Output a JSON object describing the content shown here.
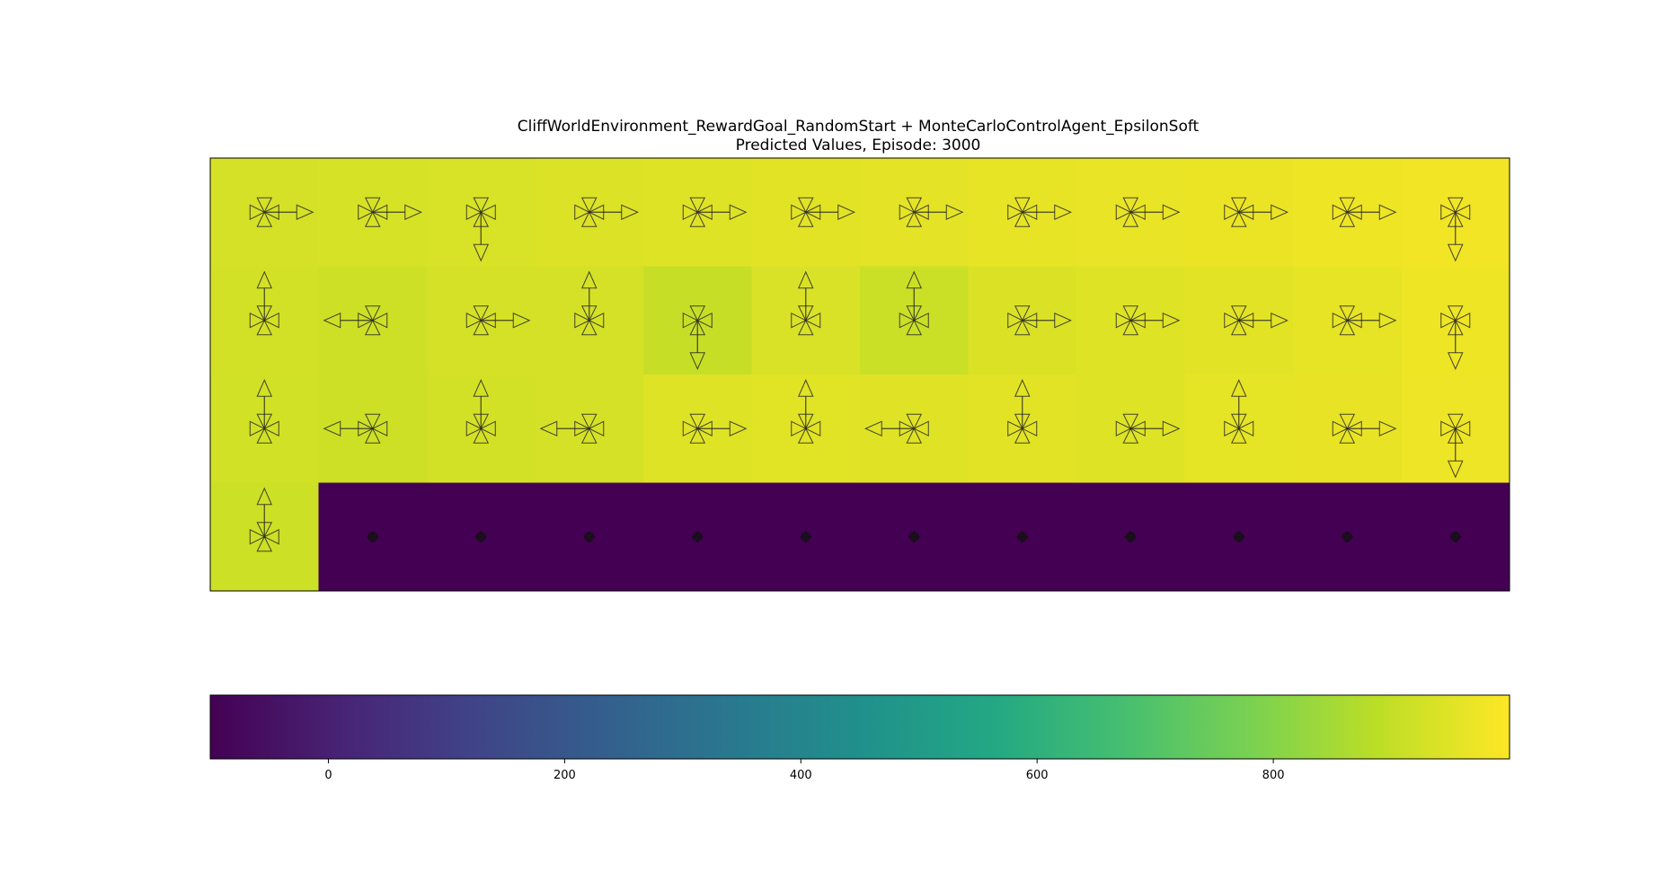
{
  "chart_data": {
    "type": "heatmap",
    "title": "CliffWorldEnvironment_RewardGoal_RandomStart + MonteCarloControlAgent_EpsilonSoft",
    "subtitle": "Predicted Values, Episode: 3000",
    "rows": 4,
    "cols": 12,
    "values": [
      [
        930,
        933,
        937,
        943,
        948,
        953,
        957,
        961,
        965,
        969,
        974,
        980
      ],
      [
        928,
        920,
        932,
        930,
        905,
        938,
        910,
        942,
        948,
        955,
        962,
        975
      ],
      [
        925,
        918,
        928,
        932,
        948,
        952,
        950,
        954,
        946,
        958,
        964,
        972
      ],
      [
        915,
        -100,
        -100,
        -100,
        -100,
        -100,
        -100,
        -100,
        -100,
        -100,
        -100,
        -100
      ]
    ],
    "actions": [
      [
        "up",
        "down",
        "left",
        "right"
      ]
    ],
    "policy_arrows": [
      [
        [
          "right"
        ],
        [
          "right"
        ],
        [
          "down"
        ],
        [
          "right"
        ],
        [
          "right"
        ],
        [
          "right"
        ],
        [
          "right"
        ],
        [
          "right"
        ],
        [
          "right"
        ],
        [
          "right"
        ],
        [
          "right"
        ],
        [
          "down"
        ]
      ],
      [
        [
          "up"
        ],
        [
          "left"
        ],
        [
          "right"
        ],
        [
          "up"
        ],
        [
          "down"
        ],
        [
          "up"
        ],
        [
          "up"
        ],
        [
          "right"
        ],
        [
          "right"
        ],
        [
          "right"
        ],
        [
          "right"
        ],
        [
          "down"
        ]
      ],
      [
        [
          "up"
        ],
        [
          "left"
        ],
        [
          "up"
        ],
        [
          "left"
        ],
        [
          "right"
        ],
        [
          "up"
        ],
        [
          "left"
        ],
        [
          "up"
        ],
        [
          "right"
        ],
        [
          "up"
        ],
        [
          "right"
        ],
        [
          "down"
        ]
      ],
      [
        [
          "up"
        ],
        [],
        [],
        [],
        [],
        [],
        [],
        [],
        [],
        [],
        [],
        []
      ]
    ],
    "terminal_cells": [
      [
        3,
        1
      ],
      [
        3,
        2
      ],
      [
        3,
        3
      ],
      [
        3,
        4
      ],
      [
        3,
        5
      ],
      [
        3,
        6
      ],
      [
        3,
        7
      ],
      [
        3,
        8
      ],
      [
        3,
        9
      ],
      [
        3,
        10
      ],
      [
        3,
        11
      ]
    ],
    "colorbar": {
      "colormap": "viridis",
      "vmin": -100,
      "vmax": 1000,
      "ticks": [
        0,
        200,
        400,
        600,
        800
      ],
      "tick_labels": [
        "0",
        "200",
        "400",
        "600",
        "800"
      ]
    },
    "grid": false
  }
}
